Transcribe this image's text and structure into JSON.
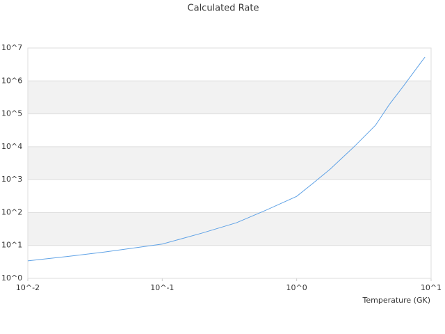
{
  "chart_data": {
    "type": "line",
    "title": "Calculated Rate",
    "xlabel": "Temperature (GK)",
    "x": [
      0.01,
      0.0204,
      0.037,
      0.1,
      0.197,
      0.357,
      0.575,
      1,
      1.33,
      1.78,
      2.7,
      3.86,
      4.9,
      6.2,
      7.9,
      9
    ],
    "values": [
      3.4,
      4.7,
      6.3,
      11,
      23.6,
      49,
      112,
      310,
      790,
      2100,
      10400,
      45000,
      194000,
      680000,
      2600000,
      5300000
    ],
    "color": "#5fa2e6",
    "xlog": true,
    "ylog": true,
    "grid": true,
    "band_color": "#f2f2f2",
    "xlim": [
      0.01,
      10
    ],
    "xticks": [
      {
        "value": 0.01,
        "label": "10^-2"
      },
      {
        "value": 0.1,
        "label": "10^-1"
      },
      {
        "value": 1,
        "label": "10^0"
      },
      {
        "value": 10,
        "label": "10^1"
      }
    ],
    "ylim": [
      1,
      10000000
    ],
    "yticks": [
      {
        "value": 1,
        "label": "10^0"
      },
      {
        "value": 10,
        "label": "10^1"
      },
      {
        "value": 100,
        "label": "10^2"
      },
      {
        "value": 1000,
        "label": "10^3"
      },
      {
        "value": 10000,
        "label": "10^4"
      },
      {
        "value": 100000,
        "label": "10^5"
      },
      {
        "value": 1000000,
        "label": "10^6"
      },
      {
        "value": 10000000,
        "label": "10^7"
      }
    ]
  }
}
